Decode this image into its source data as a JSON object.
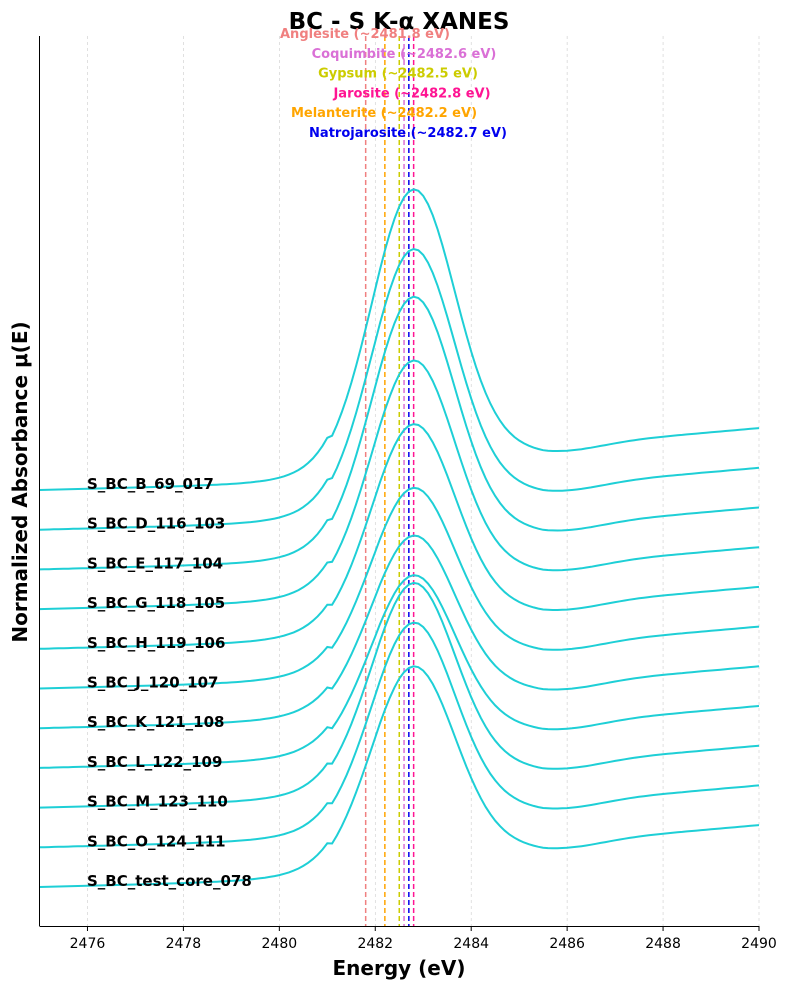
{
  "chart_data": {
    "type": "line",
    "title": "BC - S K-α XANES",
    "xlabel": "Energy (eV)",
    "ylabel": "Normalized Absorbance μ(E)",
    "xlim": [
      2475,
      2490
    ],
    "xticks": [
      2476,
      2478,
      2480,
      2482,
      2484,
      2486,
      2488,
      2490
    ],
    "grid": "vertical dashed",
    "series_color": "#1ecfd6",
    "series": [
      {
        "name": "S_BC_B_69_017",
        "offset": 10,
        "peak": 7.5
      },
      {
        "name": "S_BC_D_116_103",
        "offset": 9,
        "peak": 7.0
      },
      {
        "name": "S_BC_E_117_104",
        "offset": 8,
        "peak": 6.8
      },
      {
        "name": "S_BC_G_118_105",
        "offset": 7,
        "peak": 6.2
      },
      {
        "name": "S_BC_H_119_106",
        "offset": 6,
        "peak": 5.6
      },
      {
        "name": "S_BC_J_120_107",
        "offset": 5,
        "peak": 5.0
      },
      {
        "name": "S_BC_K_121_108",
        "offset": 4,
        "peak": 4.8
      },
      {
        "name": "S_BC_L_122_109",
        "offset": 3,
        "peak": 4.8
      },
      {
        "name": "S_BC_M_123_110",
        "offset": 2,
        "peak": 5.6
      },
      {
        "name": "S_BC_O_124_111",
        "offset": 1,
        "peak": 5.6
      },
      {
        "name": "S_BC_test_core_078",
        "offset": 0,
        "peak": 5.5
      }
    ],
    "reference_lines": [
      {
        "name": "Anglesite",
        "label": "Anglesite (~2481.8 eV)",
        "energy": 2481.8,
        "color": "#f08080"
      },
      {
        "name": "Coquimbite",
        "label": "Coquimbite (~2482.6 eV)",
        "energy": 2482.6,
        "color": "#da70d6"
      },
      {
        "name": "Gypsum",
        "label": "Gypsum (~2482.5 eV)",
        "energy": 2482.5,
        "color": "#cccc00"
      },
      {
        "name": "Jarosite",
        "label": "Jarosite (~2482.8 eV)",
        "energy": 2482.8,
        "color": "#ff1493"
      },
      {
        "name": "Melanterite",
        "label": "Melanterite (~2482.2 eV)",
        "energy": 2482.2,
        "color": "#ffa500"
      },
      {
        "name": "Natrojarosite",
        "label": "Natrojarosite (~2482.7 eV)",
        "energy": 2482.7,
        "color": "#0000ee"
      }
    ]
  }
}
